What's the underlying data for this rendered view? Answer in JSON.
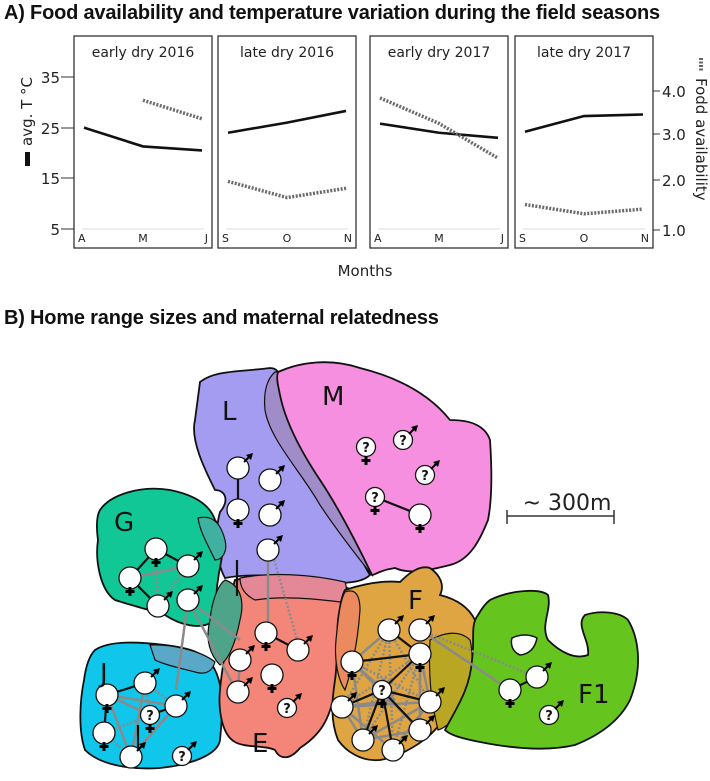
{
  "figure": {
    "panel_a_title": "A) Food availability and temperature variation during the field seasons",
    "panel_b_title": "B) Home range sizes and maternal relatedness"
  },
  "chart_data": [
    {
      "type": "line",
      "title": "A) Food availability and temperature variation during the field seasons",
      "xlabel": "Months",
      "ylabel_left": "avg. T °C",
      "ylabel_right": "Fodd availability",
      "left_axis": {
        "ticks": [
          "35",
          "25",
          "15",
          "5"
        ],
        "ylim": [
          2,
          42
        ]
      },
      "right_axis": {
        "ticks": [
          "4.0",
          "3.0",
          "2.0",
          "1.0"
        ],
        "ylim": [
          0.8,
          5.0
        ]
      },
      "legend": {
        "solid": "avg. T °C",
        "dotted": "Fodd availability"
      },
      "panels": [
        {
          "label": "early dry 2016",
          "categories": [
            "A",
            "M",
            "J"
          ],
          "series": [
            {
              "name": "avg. T °C",
              "style": "solid",
              "values": [
                25.0,
                21.3,
                20.5
              ]
            },
            {
              "name": "Fodd availability",
              "style": "dotted",
              "values": [
                null,
                3.8,
                3.4
              ]
            }
          ]
        },
        {
          "label": "late dry 2016",
          "categories": [
            "S",
            "O",
            "N"
          ],
          "series": [
            {
              "name": "avg. T °C",
              "style": "solid",
              "values": [
                24.0,
                26.0,
                28.3
              ]
            },
            {
              "name": "Fodd availability",
              "style": "dotted",
              "values": [
                2.05,
                1.7,
                1.9
              ]
            }
          ]
        },
        {
          "label": "early dry 2017",
          "categories": [
            "A",
            "M",
            "J"
          ],
          "series": [
            {
              "name": "avg. T °C",
              "style": "solid",
              "values": [
                25.8,
                24.0,
                23.0
              ]
            },
            {
              "name": "Fodd availability",
              "style": "dotted",
              "values": [
                3.85,
                3.3,
                2.55
              ]
            }
          ]
        },
        {
          "label": "late dry 2017",
          "categories": [
            "S",
            "O",
            "N"
          ],
          "series": [
            {
              "name": "avg. T °C",
              "style": "solid",
              "values": [
                24.2,
                27.3,
                27.6
              ]
            },
            {
              "name": "Fodd availability",
              "style": "dotted",
              "values": [
                1.55,
                1.35,
                1.45
              ]
            }
          ]
        }
      ]
    },
    {
      "type": "diagram",
      "title": "B) Home range sizes and maternal relatedness",
      "scale_bar": "~ 300m",
      "groups": [
        {
          "label": "L",
          "color": "#a49cf0"
        },
        {
          "label": "M",
          "color": "#f78fe0"
        },
        {
          "label": "G",
          "color": "#12c796"
        },
        {
          "label": "J",
          "color": "#10c6ea"
        },
        {
          "label": "E",
          "color": "#f48679"
        },
        {
          "label": "F",
          "color": "#dea542"
        },
        {
          "label": "F1",
          "color": "#66c41e"
        }
      ]
    }
  ],
  "map": {
    "scale_bar_label": "~ 300m",
    "group_labels": {
      "L": "L",
      "M": "M",
      "G": "G",
      "J": "J",
      "E": "E",
      "F": "F",
      "F1": "F1"
    },
    "unknown_symbol": "?"
  },
  "colors": {
    "L": "#a49cf0",
    "M": "#f78fe0",
    "G": "#12c796",
    "J": "#10c6ea",
    "E": "#f48679",
    "F": "#dea542",
    "F1": "#66c41e",
    "kin_line": "#111111",
    "relation_line": "#8a8a8a"
  }
}
